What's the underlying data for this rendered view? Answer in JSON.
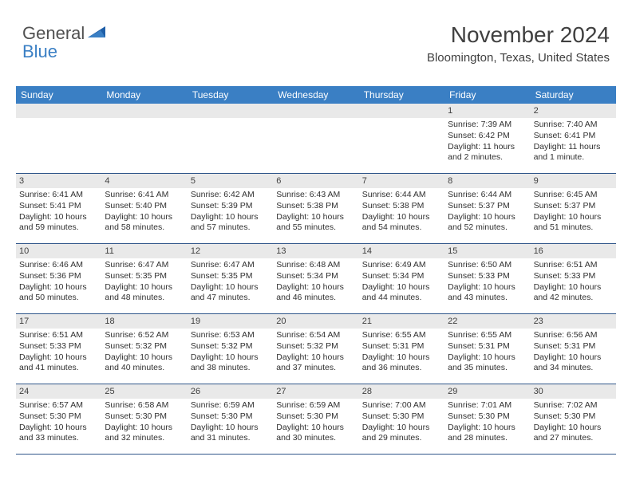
{
  "logo": {
    "line1": "General",
    "line2": "Blue"
  },
  "header": {
    "month": "November 2024",
    "location": "Bloomington, Texas, United States"
  },
  "colors": {
    "accent": "#3a7fc4",
    "header_text": "#ffffff",
    "daynum_bg": "#e9e9e9",
    "border": "#30568a",
    "text": "#303030"
  },
  "day_headers": [
    "Sunday",
    "Monday",
    "Tuesday",
    "Wednesday",
    "Thursday",
    "Friday",
    "Saturday"
  ],
  "weeks": [
    [
      null,
      null,
      null,
      null,
      null,
      {
        "n": "1",
        "sr": "Sunrise: 7:39 AM",
        "ss": "Sunset: 6:42 PM",
        "dl": "Daylight: 11 hours and 2 minutes."
      },
      {
        "n": "2",
        "sr": "Sunrise: 7:40 AM",
        "ss": "Sunset: 6:41 PM",
        "dl": "Daylight: 11 hours and 1 minute."
      }
    ],
    [
      {
        "n": "3",
        "sr": "Sunrise: 6:41 AM",
        "ss": "Sunset: 5:41 PM",
        "dl": "Daylight: 10 hours and 59 minutes."
      },
      {
        "n": "4",
        "sr": "Sunrise: 6:41 AM",
        "ss": "Sunset: 5:40 PM",
        "dl": "Daylight: 10 hours and 58 minutes."
      },
      {
        "n": "5",
        "sr": "Sunrise: 6:42 AM",
        "ss": "Sunset: 5:39 PM",
        "dl": "Daylight: 10 hours and 57 minutes."
      },
      {
        "n": "6",
        "sr": "Sunrise: 6:43 AM",
        "ss": "Sunset: 5:38 PM",
        "dl": "Daylight: 10 hours and 55 minutes."
      },
      {
        "n": "7",
        "sr": "Sunrise: 6:44 AM",
        "ss": "Sunset: 5:38 PM",
        "dl": "Daylight: 10 hours and 54 minutes."
      },
      {
        "n": "8",
        "sr": "Sunrise: 6:44 AM",
        "ss": "Sunset: 5:37 PM",
        "dl": "Daylight: 10 hours and 52 minutes."
      },
      {
        "n": "9",
        "sr": "Sunrise: 6:45 AM",
        "ss": "Sunset: 5:37 PM",
        "dl": "Daylight: 10 hours and 51 minutes."
      }
    ],
    [
      {
        "n": "10",
        "sr": "Sunrise: 6:46 AM",
        "ss": "Sunset: 5:36 PM",
        "dl": "Daylight: 10 hours and 50 minutes."
      },
      {
        "n": "11",
        "sr": "Sunrise: 6:47 AM",
        "ss": "Sunset: 5:35 PM",
        "dl": "Daylight: 10 hours and 48 minutes."
      },
      {
        "n": "12",
        "sr": "Sunrise: 6:47 AM",
        "ss": "Sunset: 5:35 PM",
        "dl": "Daylight: 10 hours and 47 minutes."
      },
      {
        "n": "13",
        "sr": "Sunrise: 6:48 AM",
        "ss": "Sunset: 5:34 PM",
        "dl": "Daylight: 10 hours and 46 minutes."
      },
      {
        "n": "14",
        "sr": "Sunrise: 6:49 AM",
        "ss": "Sunset: 5:34 PM",
        "dl": "Daylight: 10 hours and 44 minutes."
      },
      {
        "n": "15",
        "sr": "Sunrise: 6:50 AM",
        "ss": "Sunset: 5:33 PM",
        "dl": "Daylight: 10 hours and 43 minutes."
      },
      {
        "n": "16",
        "sr": "Sunrise: 6:51 AM",
        "ss": "Sunset: 5:33 PM",
        "dl": "Daylight: 10 hours and 42 minutes."
      }
    ],
    [
      {
        "n": "17",
        "sr": "Sunrise: 6:51 AM",
        "ss": "Sunset: 5:33 PM",
        "dl": "Daylight: 10 hours and 41 minutes."
      },
      {
        "n": "18",
        "sr": "Sunrise: 6:52 AM",
        "ss": "Sunset: 5:32 PM",
        "dl": "Daylight: 10 hours and 40 minutes."
      },
      {
        "n": "19",
        "sr": "Sunrise: 6:53 AM",
        "ss": "Sunset: 5:32 PM",
        "dl": "Daylight: 10 hours and 38 minutes."
      },
      {
        "n": "20",
        "sr": "Sunrise: 6:54 AM",
        "ss": "Sunset: 5:32 PM",
        "dl": "Daylight: 10 hours and 37 minutes."
      },
      {
        "n": "21",
        "sr": "Sunrise: 6:55 AM",
        "ss": "Sunset: 5:31 PM",
        "dl": "Daylight: 10 hours and 36 minutes."
      },
      {
        "n": "22",
        "sr": "Sunrise: 6:55 AM",
        "ss": "Sunset: 5:31 PM",
        "dl": "Daylight: 10 hours and 35 minutes."
      },
      {
        "n": "23",
        "sr": "Sunrise: 6:56 AM",
        "ss": "Sunset: 5:31 PM",
        "dl": "Daylight: 10 hours and 34 minutes."
      }
    ],
    [
      {
        "n": "24",
        "sr": "Sunrise: 6:57 AM",
        "ss": "Sunset: 5:30 PM",
        "dl": "Daylight: 10 hours and 33 minutes."
      },
      {
        "n": "25",
        "sr": "Sunrise: 6:58 AM",
        "ss": "Sunset: 5:30 PM",
        "dl": "Daylight: 10 hours and 32 minutes."
      },
      {
        "n": "26",
        "sr": "Sunrise: 6:59 AM",
        "ss": "Sunset: 5:30 PM",
        "dl": "Daylight: 10 hours and 31 minutes."
      },
      {
        "n": "27",
        "sr": "Sunrise: 6:59 AM",
        "ss": "Sunset: 5:30 PM",
        "dl": "Daylight: 10 hours and 30 minutes."
      },
      {
        "n": "28",
        "sr": "Sunrise: 7:00 AM",
        "ss": "Sunset: 5:30 PM",
        "dl": "Daylight: 10 hours and 29 minutes."
      },
      {
        "n": "29",
        "sr": "Sunrise: 7:01 AM",
        "ss": "Sunset: 5:30 PM",
        "dl": "Daylight: 10 hours and 28 minutes."
      },
      {
        "n": "30",
        "sr": "Sunrise: 7:02 AM",
        "ss": "Sunset: 5:30 PM",
        "dl": "Daylight: 10 hours and 27 minutes."
      }
    ]
  ]
}
